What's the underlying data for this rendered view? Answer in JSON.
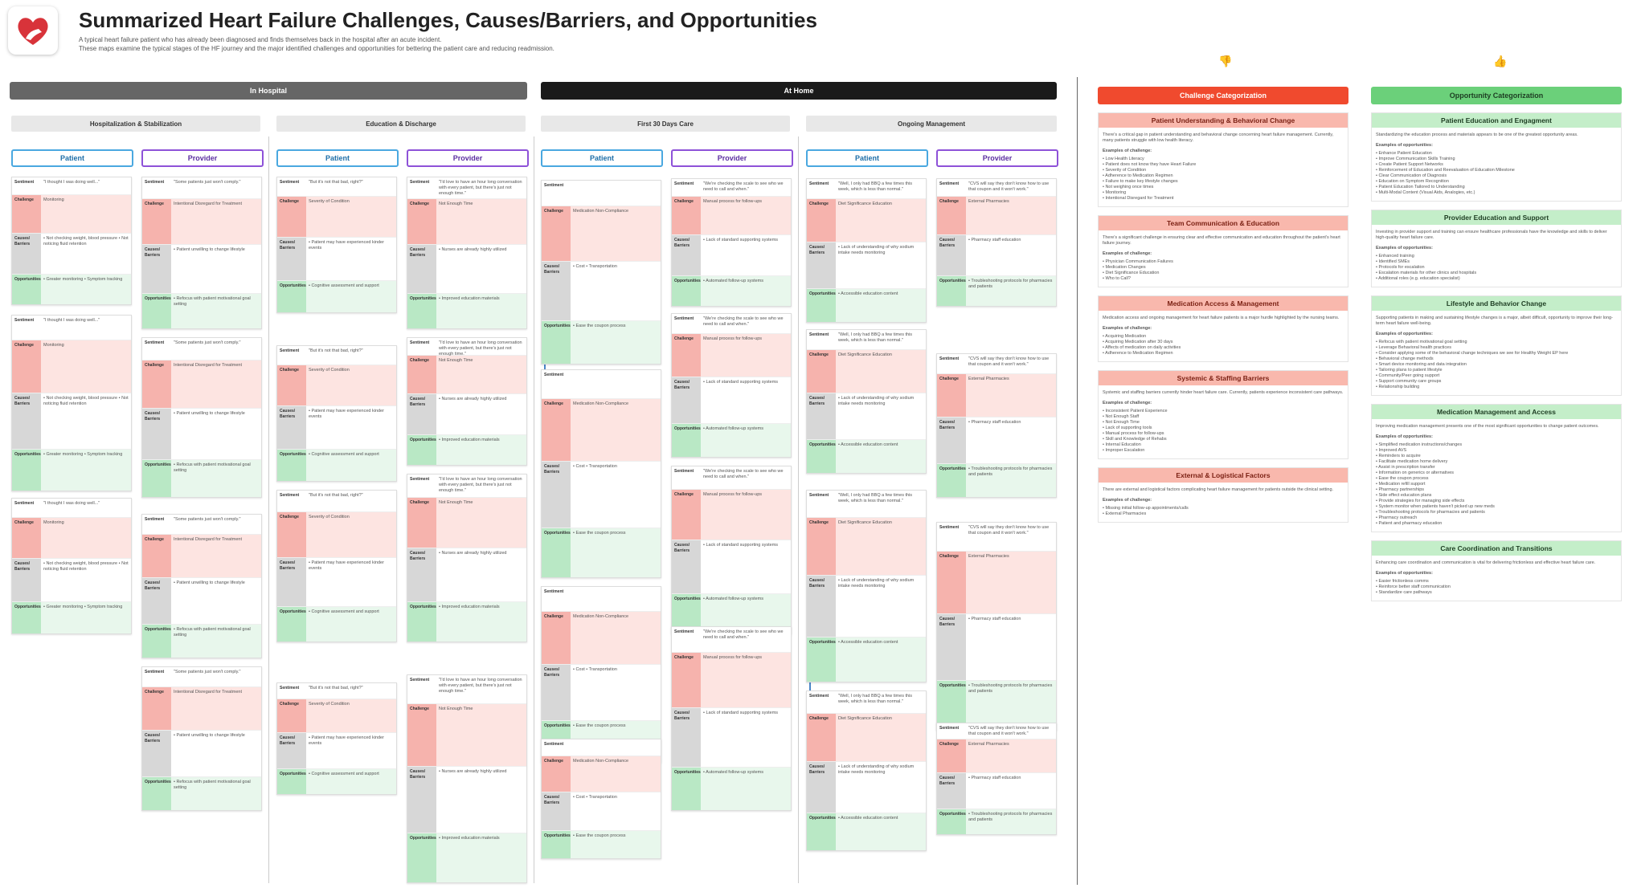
{
  "header": {
    "title": "Summarized Heart Failure Challenges, Causes/Barriers, and Opportunities",
    "subtitle1": "A typical heart failure patient who has already been diagnosed and finds themselves back in the hospital after an acute incident.",
    "subtitle2": "These maps examine the typical stages of the HF journey and the major identified challenges and opportunities for bettering the patient care and reducing readmission."
  },
  "phases": {
    "in_hospital": "In Hospital",
    "at_home": "At Home"
  },
  "stages": [
    "Hospitalization & Stabilization",
    "Education & Discharge",
    "First 30 Days Care",
    "Ongoing Management"
  ],
  "roles": {
    "patient": "Patient",
    "provider": "Provider"
  },
  "labels": {
    "sentiment": "Sentiment",
    "challenge": "Challenge",
    "causes": "Causes/ Barriers",
    "causes_short": "Causes",
    "opportunities": "Opportunities",
    "opportunity": "Opportunity"
  },
  "cards": [
    {
      "s": "\"I thought I was doing well...\"",
      "ch": "Monitoring",
      "cb": "• Not checking weight, blood pressure • Not noticing fluid retention",
      "op": "• Greater monitoring • Symptom tracking"
    },
    {
      "s": "\"Some patients just won't comply.\"",
      "ch": "Intentional Disregard for Treatment",
      "cb": "• Patient unwilling to change lifestyle",
      "op": "• Refocus with patient motivational goal setting"
    },
    {
      "s": "\"But it's not that bad, right?\"",
      "ch": "Severity of Condition",
      "cb": "• Patient may have experienced kinder events",
      "op": "• Cognitive assessment and support"
    },
    {
      "s": "\"I'd love to have an hour long conversation with every patient, but there's just not enough time.\"",
      "ch": "Not Enough Time",
      "cb": "• Nurses are already highly utilized",
      "op": "• Improved education materials"
    },
    {
      "s": "",
      "ch": "Medication Non-Compliance",
      "cb": "• Cost • Transportation",
      "op": "• Ease the coupon process"
    },
    {
      "s": "\"We're checking the scale to see who we need to call and when.\"",
      "ch": "Manual process for follow-ups",
      "cb": "• Lack of standard supporting systems",
      "op": "• Automated follow-up systems"
    },
    {
      "s": "\"Well, I only had BBQ a few times this week, which is less than normal.\"",
      "ch": "Diet Significance Education",
      "cb": "• Lack of understanding of why sodium intake needs monitoring",
      "op": "• Accessible education content"
    },
    {
      "s": "\"CVS will say they don't know how to use that coupon and it won't work.\"",
      "ch": "External Pharmacies",
      "cb": "• Pharmacy staff education",
      "op": "• Troubleshooting protocols for pharmacies and patients"
    }
  ],
  "challenge_cat": {
    "title": "Challenge Categorization",
    "sections": [
      {
        "h": "Patient Understanding & Behavioral Change",
        "t": "There's a critical gap in patient understanding and behavioral change concerning heart failure management. Currently, many patients struggle with low health literacy.",
        "ex": "Examples of challenge:",
        "items": [
          "Low Health Literacy",
          "Patient does not know they have Heart Failure",
          "Severity of Condition",
          "Adherence to Medication Regimen",
          "Failure to make key lifestyle changes",
          "Not weighing once times",
          "Monitoring",
          "Intentional Disregard for Treatment"
        ]
      },
      {
        "h": "Team Communication & Education",
        "t": "There's a significant challenge in ensuring clear and effective communication and education throughout the patient's heart failure journey.",
        "ex": "Examples of challenge:",
        "items": [
          "Physician Communication Failures",
          "Medication Changes",
          "Diet Significance Education",
          "Who to Call?"
        ]
      },
      {
        "h": "Medication Access & Management",
        "t": "Medication access and ongoing management for heart failure patients is a major hurdle highlighted by the nursing teams.",
        "ex": "Examples of challenge:",
        "items": [
          "Acquiring Medication",
          "Acquiring Medication after 30 days",
          "Affects of medication on daily activities",
          "Adherence to Medication Regimen"
        ]
      },
      {
        "h": "Systemic & Staffing Barriers",
        "t": "Systemic and staffing barriers currently hinder heart failure care. Currently, patients experience inconsistent care pathways.",
        "ex": "Examples of challenge:",
        "items": [
          "Inconsistent Patient Experience",
          "Not Enough Staff",
          "Not Enough Time",
          "Lack of supporting tools",
          "Manual process for follow-ups",
          "Skill and Knowledge of Rehabs",
          "Internal Education",
          "Improper Escalation"
        ]
      },
      {
        "h": "External & Logistical Factors",
        "t": "There are external and logistical factors complicating heart failure management for patients outside the clinical setting.",
        "ex": "Examples of challenge:",
        "items": [
          "Missing initial follow-up appointments/calls",
          "External Pharmacies"
        ]
      }
    ]
  },
  "opp_cat": {
    "title": "Opportunity Categorization",
    "sections": [
      {
        "h": "Patient Education and Engagment",
        "t": "Standardizing the education process and materials appears to be one of the greatest opportunity areas.",
        "ex": "Examples of opportunities:",
        "items": [
          "Enhance Patient Education",
          "Improve Communication Skills Training",
          "Create Patient Support Networks",
          "Reinforcement of Education and Reevaluation of Education Milestone",
          "Clear Communication of Diagnosis",
          "Education on Symptom Recognition",
          "Patient Education Tailored to Understanding",
          "Multi-Modal Content (Visual Aids, Analogies, etc.)"
        ]
      },
      {
        "h": "Provider Education and Support",
        "t": "Investing in provider support and training can ensure healthcare professionals have the knowledge and skills to deliver high-quality heart failure care.",
        "ex": "Examples of opportunities:",
        "items": [
          "Enhanced training",
          "Identified SMEs",
          "Protocols for escalation",
          "Escalation materials for other clinics and hospitals",
          "Additional roles (e.g. education specialist)"
        ]
      },
      {
        "h": "Lifestyle and Behavior Change",
        "t": "Supporting patients in making and sustaining lifestyle changes is a major, albeit difficult, opportunity to improve their long-term heart failure well-being.",
        "ex": "Examples of opportunities:",
        "items": [
          "Refocus with patient motivational goal setting",
          "Leverage Behavioral health practices",
          "Consider applying some of the behavioral change techniques we see for Healthy Weight EP here",
          "Behavioral change methods",
          "Smart device monitoring and data integration",
          "Tailoring plans to patient lifestyle",
          "Community/Peer going support",
          "Support community care groups",
          "Relationship building"
        ]
      },
      {
        "h": "Medication Management and Access",
        "t": "Improving medication management presents one of the most significant opportunities to change patient outcomes.",
        "ex": "Examples of opportunities:",
        "items": [
          "Simplified medication instructions/changes",
          "Improved AVS",
          "Reminders to acquire",
          "Facilitate medication home delivery",
          "Assist in prescription transfer",
          "Information on generics or alternatives",
          "Ease the coupon process",
          "Medication refill support",
          "Pharmacy partnerships",
          "Side effect education plans",
          "Provide strategies for managing side effects",
          "System monitor when patients haven't picked up new meds",
          "Troubleshooting protocols for pharmacies and patients",
          "Pharmacy outreach",
          "Patient and pharmacy education"
        ]
      },
      {
        "h": "Care Coordination and Transitions",
        "t": "Enhancing care coordination and communication is vital for delivering frictionless and effective heart failure care.",
        "ex": "Examples of opportunities:",
        "items": [
          "Easier frictionless comms",
          "Reinforce better staff communication",
          "Standardize care pathways"
        ]
      }
    ]
  }
}
